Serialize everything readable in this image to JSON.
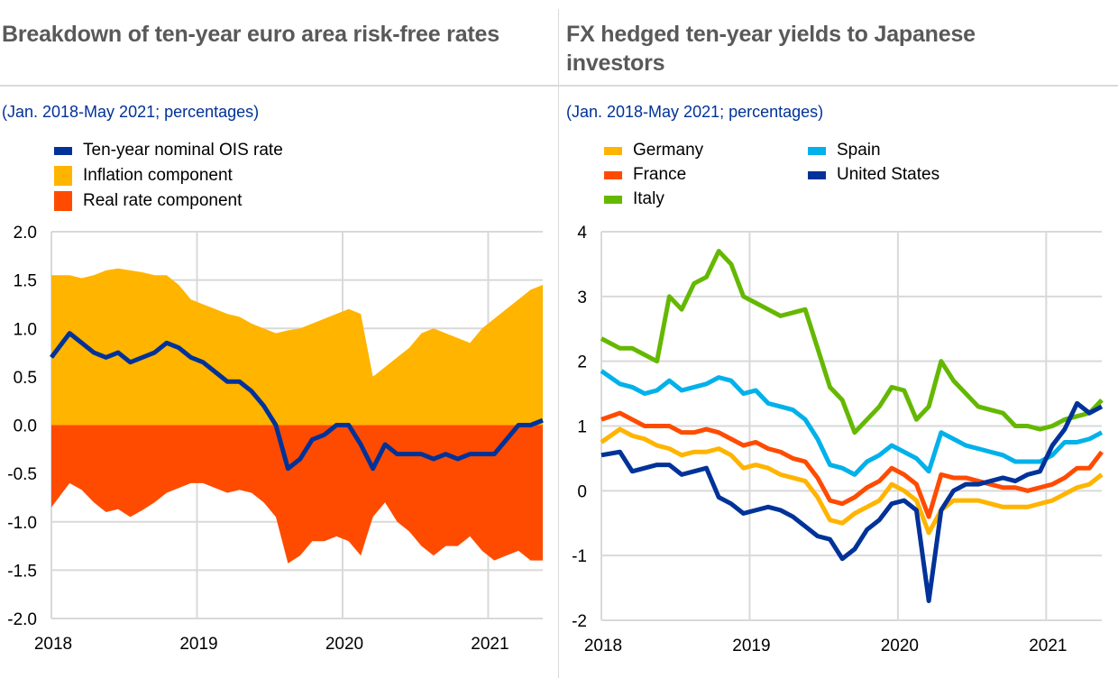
{
  "left": {
    "title": "Breakdown of ten-year euro area risk-free rates",
    "subtitle": "(Jan. 2018-May 2021; percentages)",
    "legend": [
      "Ten-year nominal OIS rate",
      "Inflation component",
      "Real rate component"
    ]
  },
  "right": {
    "title": "FX hedged ten-year yields to Japanese investors",
    "subtitle": "(Jan. 2018-May 2021; percentages)",
    "legend": [
      "Germany",
      "France",
      "Italy",
      "Spain",
      "United States"
    ]
  },
  "chart_data": [
    {
      "type": "area",
      "title": "Breakdown of ten-year euro area risk-free rates",
      "x_start": "2018-01",
      "x_end": "2021-05",
      "frequency": "monthly",
      "xticks": [
        "2018",
        "2019",
        "2020",
        "2021"
      ],
      "yticks": [
        "2.0",
        "1.5",
        "1.0",
        "0.5",
        "0.0",
        "-0.5",
        "-1.0",
        "-1.5",
        "-2.0"
      ],
      "ylim": [
        -2,
        2
      ],
      "grid": true,
      "series": [
        {
          "name": "Inflation component",
          "kind": "area",
          "color": "#ffb400",
          "values": [
            1.55,
            1.55,
            1.52,
            1.55,
            1.6,
            1.62,
            1.6,
            1.58,
            1.55,
            1.55,
            1.45,
            1.3,
            1.25,
            1.2,
            1.15,
            1.12,
            1.05,
            1.0,
            0.95,
            0.98,
            1.0,
            1.05,
            1.1,
            1.15,
            1.2,
            1.15,
            0.5,
            0.6,
            0.7,
            0.8,
            0.95,
            1.0,
            0.95,
            0.9,
            0.85,
            1.0,
            1.1,
            1.2,
            1.3,
            1.4,
            1.45
          ]
        },
        {
          "name": "Real rate component",
          "kind": "area",
          "color": "#ff4b00",
          "values": [
            -0.85,
            -0.6,
            -0.67,
            -0.8,
            -0.9,
            -0.87,
            -0.95,
            -0.88,
            -0.8,
            -0.7,
            -0.65,
            -0.6,
            -0.6,
            -0.65,
            -0.7,
            -0.67,
            -0.7,
            -0.8,
            -0.95,
            -1.43,
            -1.35,
            -1.2,
            -1.2,
            -1.15,
            -1.2,
            -1.35,
            -0.95,
            -0.8,
            -1.0,
            -1.1,
            -1.25,
            -1.35,
            -1.25,
            -1.25,
            -1.15,
            -1.3,
            -1.4,
            -1.35,
            -1.3,
            -1.4,
            -1.4
          ]
        },
        {
          "name": "Ten-year nominal OIS rate",
          "kind": "line",
          "color": "#003299",
          "values": [
            0.7,
            0.95,
            0.85,
            0.75,
            0.7,
            0.75,
            0.65,
            0.7,
            0.75,
            0.85,
            0.8,
            0.7,
            0.65,
            0.55,
            0.45,
            0.45,
            0.35,
            0.2,
            0.0,
            -0.45,
            -0.35,
            -0.15,
            -0.1,
            0.0,
            0.0,
            -0.2,
            -0.45,
            -0.2,
            -0.3,
            -0.3,
            -0.3,
            -0.35,
            -0.3,
            -0.35,
            -0.3,
            -0.3,
            -0.3,
            -0.15,
            0.0,
            0.0,
            0.05
          ]
        }
      ]
    },
    {
      "type": "line",
      "title": "FX hedged ten-year yields to Japanese investors",
      "x_start": "2018-01",
      "x_end": "2021-05",
      "frequency": "monthly",
      "xticks": [
        "2018",
        "2019",
        "2020",
        "2021"
      ],
      "yticks": [
        "4",
        "3",
        "2",
        "1",
        "0",
        "-1",
        "-2"
      ],
      "ylim": [
        -2,
        4
      ],
      "grid": true,
      "series": [
        {
          "name": "Italy",
          "color": "#65b800",
          "values": [
            2.35,
            2.2,
            2.2,
            2.1,
            2.0,
            3.0,
            2.8,
            3.2,
            3.3,
            3.7,
            3.5,
            3.0,
            2.9,
            2.8,
            2.7,
            2.75,
            2.8,
            2.2,
            1.6,
            1.4,
            0.9,
            1.1,
            1.3,
            1.6,
            1.55,
            1.1,
            1.3,
            2.0,
            1.7,
            1.5,
            1.3,
            1.25,
            1.2,
            1.0,
            1.0,
            0.95,
            1.0,
            1.1,
            1.15,
            1.2,
            1.4
          ]
        },
        {
          "name": "Spain",
          "color": "#00b1ea",
          "values": [
            1.85,
            1.65,
            1.6,
            1.5,
            1.55,
            1.7,
            1.55,
            1.6,
            1.65,
            1.75,
            1.7,
            1.5,
            1.55,
            1.35,
            1.3,
            1.25,
            1.1,
            0.8,
            0.4,
            0.35,
            0.25,
            0.45,
            0.55,
            0.7,
            0.6,
            0.5,
            0.3,
            0.9,
            0.8,
            0.7,
            0.65,
            0.6,
            0.55,
            0.45,
            0.45,
            0.45,
            0.55,
            0.75,
            0.75,
            0.8,
            0.9
          ]
        },
        {
          "name": "France",
          "color": "#ff4b00",
          "values": [
            1.1,
            1.2,
            1.1,
            1.0,
            1.0,
            1.0,
            0.9,
            0.9,
            0.95,
            0.9,
            0.8,
            0.7,
            0.75,
            0.65,
            0.6,
            0.5,
            0.45,
            0.2,
            -0.15,
            -0.2,
            -0.1,
            0.05,
            0.15,
            0.35,
            0.25,
            0.1,
            -0.4,
            0.25,
            0.2,
            0.2,
            0.15,
            0.1,
            0.05,
            0.05,
            0.0,
            0.05,
            0.1,
            0.2,
            0.35,
            0.35,
            0.6
          ]
        },
        {
          "name": "Germany",
          "color": "#ffb400",
          "values": [
            0.75,
            0.95,
            0.85,
            0.8,
            0.7,
            0.65,
            0.55,
            0.6,
            0.6,
            0.65,
            0.55,
            0.35,
            0.4,
            0.35,
            0.25,
            0.2,
            0.15,
            -0.1,
            -0.45,
            -0.5,
            -0.35,
            -0.25,
            -0.15,
            0.1,
            0.0,
            -0.15,
            -0.65,
            -0.3,
            -0.15,
            -0.15,
            -0.15,
            -0.2,
            -0.25,
            -0.25,
            -0.25,
            -0.2,
            -0.15,
            -0.05,
            0.05,
            0.1,
            0.25
          ]
        },
        {
          "name": "United States",
          "color": "#003299",
          "values": [
            0.55,
            0.6,
            0.3,
            0.35,
            0.4,
            0.4,
            0.25,
            0.3,
            0.35,
            -0.1,
            -0.2,
            -0.35,
            -0.3,
            -0.25,
            -0.3,
            -0.4,
            -0.55,
            -0.7,
            -0.75,
            -1.05,
            -0.9,
            -0.6,
            -0.45,
            -0.2,
            -0.15,
            -0.3,
            -1.7,
            -0.3,
            0.0,
            0.1,
            0.1,
            0.15,
            0.2,
            0.15,
            0.25,
            0.3,
            0.7,
            0.95,
            1.35,
            1.2,
            1.3
          ]
        }
      ]
    }
  ]
}
